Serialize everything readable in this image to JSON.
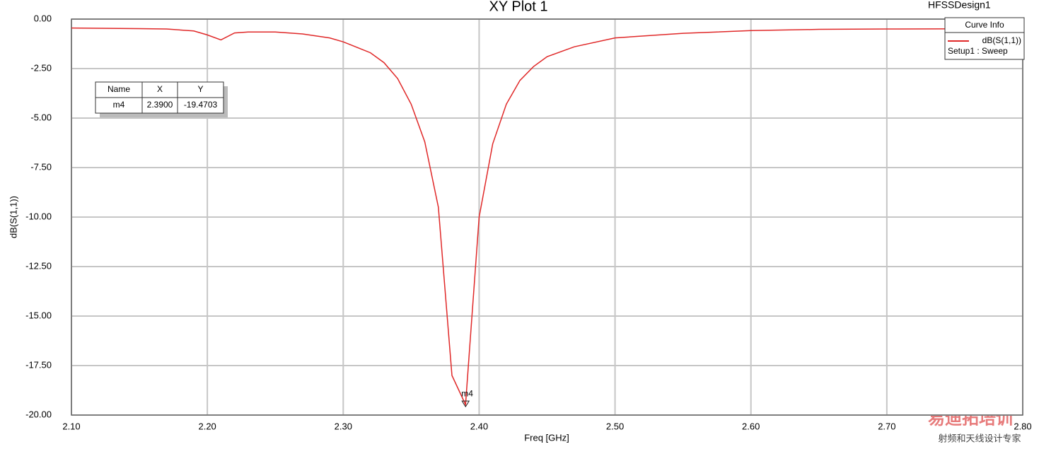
{
  "chart_data": {
    "type": "line",
    "title": "XY Plot 1",
    "design_name": "HFSSDesign1",
    "x_label": "Freq [GHz]",
    "y_label": "dB(S(1,1))",
    "xlim": [
      2.1,
      2.8
    ],
    "ylim": [
      -20,
      0
    ],
    "xticks": [
      {
        "value": 2.1,
        "label": "2.10"
      },
      {
        "value": 2.2,
        "label": "2.20"
      },
      {
        "value": 2.3,
        "label": "2.30"
      },
      {
        "value": 2.4,
        "label": "2.40"
      },
      {
        "value": 2.5,
        "label": "2.50"
      },
      {
        "value": 2.6,
        "label": "2.60"
      },
      {
        "value": 2.7,
        "label": "2.70"
      },
      {
        "value": 2.8,
        "label": "2.80"
      }
    ],
    "yticks": [
      {
        "value": 0,
        "label": "0.00"
      },
      {
        "value": -2.5,
        "label": "-2.50"
      },
      {
        "value": -5,
        "label": "-5.00"
      },
      {
        "value": -7.5,
        "label": "-7.50"
      },
      {
        "value": -10,
        "label": "-10.00"
      },
      {
        "value": -12.5,
        "label": "-12.50"
      },
      {
        "value": -15,
        "label": "-15.00"
      },
      {
        "value": -17.5,
        "label": "-17.50"
      },
      {
        "value": -20,
        "label": "-20.00"
      }
    ],
    "grid": true,
    "x": [
      2.1,
      2.15,
      2.17,
      2.19,
      2.2,
      2.21,
      2.22,
      2.23,
      2.25,
      2.27,
      2.29,
      2.3,
      2.32,
      2.33,
      2.34,
      2.35,
      2.36,
      2.37,
      2.38,
      2.39,
      2.4,
      2.41,
      2.42,
      2.43,
      2.44,
      2.45,
      2.47,
      2.5,
      2.55,
      2.6,
      2.65,
      2.7,
      2.8
    ],
    "series": [
      {
        "name": "dB(S(1,1))",
        "color": "#e02828",
        "values": [
          -0.45,
          -0.48,
          -0.5,
          -0.6,
          -0.8,
          -1.05,
          -0.7,
          -0.65,
          -0.65,
          -0.75,
          -0.95,
          -1.15,
          -1.7,
          -2.2,
          -3.0,
          -4.3,
          -6.2,
          -9.5,
          -18.0,
          -19.4703,
          -10.0,
          -6.3,
          -4.3,
          -3.1,
          -2.4,
          -1.9,
          -1.4,
          -0.95,
          -0.72,
          -0.58,
          -0.52,
          -0.5,
          -0.48
        ]
      }
    ],
    "legend_title": "Curve Info",
    "legend_subtitle": "Setup1 : Sweep",
    "legend_position": "upper right",
    "markers": [
      {
        "label": "m4",
        "x": 2.39,
        "y": -19.4703
      }
    ],
    "marker_table": {
      "columns": [
        "Name",
        "X",
        "Y"
      ],
      "rows": [
        [
          "m4",
          "2.3900",
          "-19.4703"
        ]
      ]
    },
    "watermark": [
      "易迪拓培训",
      "射频和天线设计专家"
    ]
  }
}
